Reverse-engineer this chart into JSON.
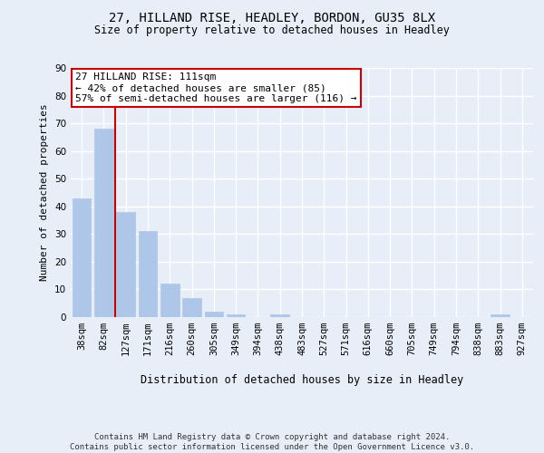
{
  "title1": "27, HILLAND RISE, HEADLEY, BORDON, GU35 8LX",
  "title2": "Size of property relative to detached houses in Headley",
  "xlabel": "Distribution of detached houses by size in Headley",
  "ylabel": "Number of detached properties",
  "categories": [
    "38sqm",
    "82sqm",
    "127sqm",
    "171sqm",
    "216sqm",
    "260sqm",
    "305sqm",
    "349sqm",
    "394sqm",
    "438sqm",
    "483sqm",
    "527sqm",
    "571sqm",
    "616sqm",
    "660sqm",
    "705sqm",
    "749sqm",
    "794sqm",
    "838sqm",
    "883sqm",
    "927sqm"
  ],
  "values": [
    43,
    68,
    38,
    31,
    12,
    7,
    2,
    1,
    0,
    1,
    0,
    0,
    0,
    0,
    0,
    0,
    0,
    0,
    0,
    1,
    0
  ],
  "bar_color": "#aec6e8",
  "bar_edge_color": "#aec6e8",
  "vline_color": "#cc0000",
  "ylim": [
    0,
    90
  ],
  "yticks": [
    0,
    10,
    20,
    30,
    40,
    50,
    60,
    70,
    80,
    90
  ],
  "annotation_text": "27 HILLAND RISE: 111sqm\n← 42% of detached houses are smaller (85)\n57% of semi-detached houses are larger (116) →",
  "annotation_box_color": "#ffffff",
  "annotation_box_edge": "#cc0000",
  "footer": "Contains HM Land Registry data © Crown copyright and database right 2024.\nContains public sector information licensed under the Open Government Licence v3.0.",
  "bg_color": "#e8eef8",
  "plot_bg_color": "#e8eef8",
  "grid_color": "#ffffff",
  "title1_fontsize": 10,
  "title2_fontsize": 8.5,
  "ylabel_fontsize": 8,
  "xlabel_fontsize": 8.5,
  "tick_fontsize": 7.5,
  "footer_fontsize": 6.5,
  "annot_fontsize": 8
}
